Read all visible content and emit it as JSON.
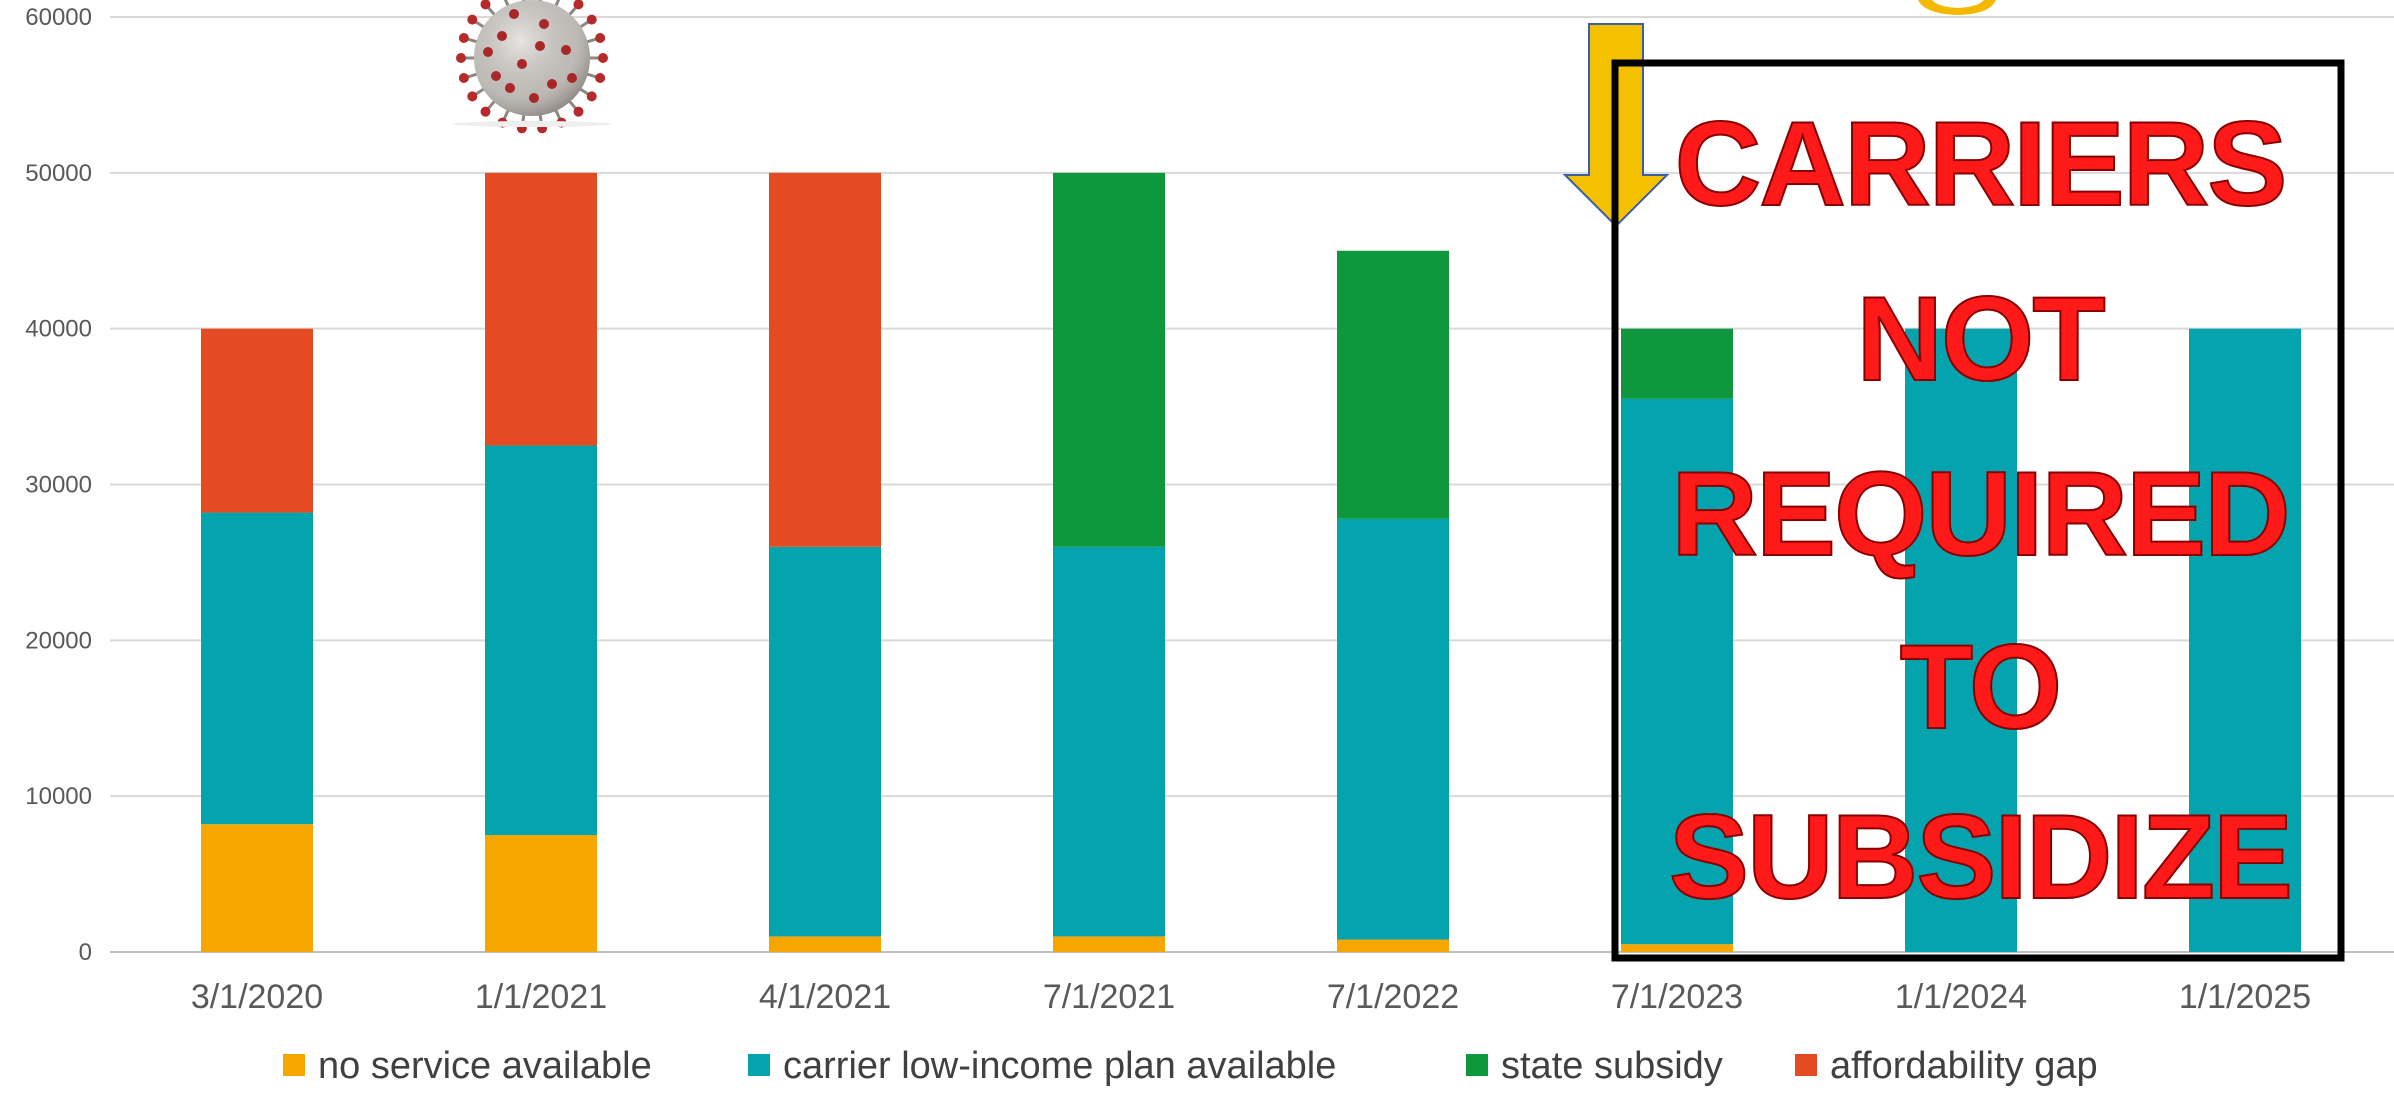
{
  "chart_data": {
    "type": "bar",
    "stacked": true,
    "categories": [
      "3/1/2020",
      "1/1/2021",
      "4/1/2021",
      "7/1/2021",
      "7/1/2022",
      "7/1/2023",
      "1/1/2024",
      "1/1/2025"
    ],
    "series": [
      {
        "name": "no service available",
        "color": "#f5a700",
        "values": [
          8200,
          7500,
          1000,
          1000,
          800,
          500,
          0,
          0
        ]
      },
      {
        "name": "carrier low-income plan available",
        "color": "#04a3ad",
        "values": [
          20000,
          25000,
          25000,
          25000,
          27000,
          35000,
          40000,
          40000
        ]
      },
      {
        "name": "state subsidy",
        "color": "#0f973d",
        "values": [
          0,
          0,
          0,
          24000,
          17200,
          4500,
          0,
          0
        ]
      },
      {
        "name": "affordability gap",
        "color": "#e54b23",
        "values": [
          11800,
          17500,
          24000,
          0,
          0,
          0,
          0,
          0
        ]
      }
    ],
    "ylim": [
      0,
      60000
    ],
    "yticks": [
      0,
      10000,
      20000,
      30000,
      40000,
      50000,
      60000
    ],
    "grid": true,
    "legend": "bottom"
  },
  "annotations": {
    "callout_lines": [
      "CARRIERS",
      "NOT",
      "REQUIRED",
      "TO",
      "SUBSIDIZE"
    ],
    "arrow_color": "#f5c000",
    "virus_icon": "coronavirus-icon"
  }
}
